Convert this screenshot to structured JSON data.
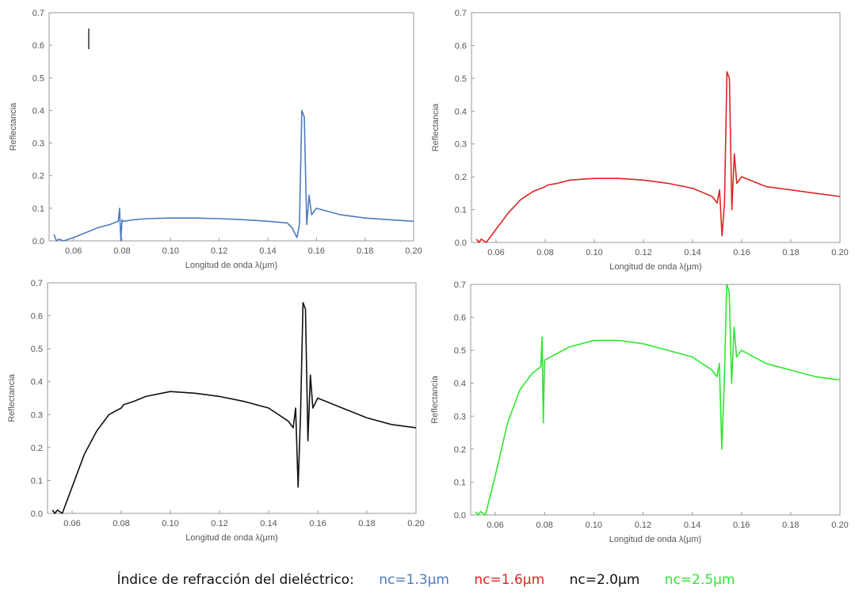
{
  "caption": {
    "prefix": "Índice de refracción del dieléctrico:",
    "items": [
      {
        "label": "nc=1.3μm",
        "color": "#4f7bbf"
      },
      {
        "label": "nc=1.6μm",
        "color": "#e02424"
      },
      {
        "label": "nc=2.0μm",
        "color": "#111111"
      },
      {
        "label": "nc=2.5μm",
        "color": "#2ee62e"
      }
    ]
  },
  "chart_data": [
    {
      "type": "line",
      "title": "",
      "xlabel": "Longitud de onda λ(μm)",
      "ylabel": "Reflectancia",
      "xlim": [
        0.05,
        0.2
      ],
      "ylim": [
        0,
        0.7
      ],
      "x_ticks": [
        "0.06",
        "0.08",
        "0.10",
        "0.12",
        "0.14",
        "0.16",
        "0.18",
        "0.20"
      ],
      "y_ticks": [
        "0.0",
        "0.1",
        "0.2",
        "0.3",
        "0.4",
        "0.5",
        "0.6",
        "0.7"
      ],
      "grid": false,
      "color": "#4f7bbf",
      "series": [
        {
          "x": [
            0.052,
            0.053,
            0.054,
            0.056,
            0.06,
            0.065,
            0.07,
            0.075,
            0.0785,
            0.079,
            0.0795,
            0.08,
            0.0805,
            0.085,
            0.09,
            0.1,
            0.11,
            0.12,
            0.13,
            0.14,
            0.148,
            0.15,
            0.152,
            0.153,
            0.154,
            0.155,
            0.156,
            0.157,
            0.158,
            0.16,
            0.17,
            0.18,
            0.19,
            0.2
          ],
          "y": [
            0.02,
            0.0,
            0.005,
            0.0,
            0.01,
            0.025,
            0.04,
            0.05,
            0.06,
            0.1,
            0.0,
            0.065,
            0.06,
            0.065,
            0.068,
            0.07,
            0.07,
            0.068,
            0.065,
            0.06,
            0.055,
            0.04,
            0.01,
            0.05,
            0.4,
            0.38,
            0.05,
            0.14,
            0.08,
            0.1,
            0.08,
            0.07,
            0.065,
            0.06
          ]
        }
      ]
    },
    {
      "type": "line",
      "title": "",
      "xlabel": "Longitud de onda λ(μm)",
      "ylabel": "Reflectancia",
      "xlim": [
        0.05,
        0.2
      ],
      "ylim": [
        0,
        0.7
      ],
      "x_ticks": [
        "0.06",
        "0.08",
        "0.10",
        "0.12",
        "0.14",
        "0.16",
        "0.18",
        "0.20"
      ],
      "y_ticks": [
        "0.0",
        "0.1",
        "0.2",
        "0.3",
        "0.4",
        "0.5",
        "0.6",
        "0.7"
      ],
      "grid": false,
      "color": "#e02424",
      "series": [
        {
          "x": [
            0.052,
            0.053,
            0.054,
            0.056,
            0.06,
            0.065,
            0.07,
            0.075,
            0.08,
            0.081,
            0.085,
            0.09,
            0.1,
            0.11,
            0.12,
            0.13,
            0.14,
            0.148,
            0.15,
            0.151,
            0.152,
            0.153,
            0.154,
            0.155,
            0.156,
            0.157,
            0.158,
            0.16,
            0.17,
            0.18,
            0.19,
            0.2
          ],
          "y": [
            0.01,
            0.0,
            0.01,
            0.0,
            0.04,
            0.09,
            0.13,
            0.155,
            0.17,
            0.175,
            0.18,
            0.19,
            0.195,
            0.195,
            0.19,
            0.18,
            0.165,
            0.14,
            0.12,
            0.16,
            0.02,
            0.12,
            0.52,
            0.5,
            0.1,
            0.27,
            0.18,
            0.2,
            0.17,
            0.16,
            0.15,
            0.14
          ]
        }
      ]
    },
    {
      "type": "line",
      "title": "",
      "xlabel": "Longitud de onda λ(μm)",
      "ylabel": "Reflectancia",
      "xlim": [
        0.05,
        0.2
      ],
      "ylim": [
        0,
        0.7
      ],
      "x_ticks": [
        "0.06",
        "0.08",
        "0.10",
        "0.12",
        "0.14",
        "0.16",
        "0.18",
        "0.20"
      ],
      "y_ticks": [
        "0.0",
        "0.1",
        "0.2",
        "0.3",
        "0.4",
        "0.5",
        "0.6",
        "0.7"
      ],
      "grid": false,
      "color": "#111111",
      "series": [
        {
          "x": [
            0.052,
            0.053,
            0.054,
            0.056,
            0.06,
            0.065,
            0.07,
            0.075,
            0.08,
            0.081,
            0.085,
            0.09,
            0.1,
            0.11,
            0.12,
            0.13,
            0.14,
            0.148,
            0.15,
            0.151,
            0.152,
            0.153,
            0.154,
            0.155,
            0.156,
            0.157,
            0.158,
            0.16,
            0.17,
            0.18,
            0.19,
            0.2
          ],
          "y": [
            0.01,
            0.0,
            0.01,
            0.0,
            0.08,
            0.18,
            0.25,
            0.3,
            0.32,
            0.33,
            0.34,
            0.355,
            0.37,
            0.365,
            0.355,
            0.34,
            0.32,
            0.28,
            0.26,
            0.32,
            0.08,
            0.3,
            0.64,
            0.62,
            0.22,
            0.42,
            0.32,
            0.35,
            0.32,
            0.29,
            0.27,
            0.26
          ]
        }
      ]
    },
    {
      "type": "line",
      "title": "",
      "xlabel": "Longitud de onda λ(μm)",
      "ylabel": "Reflectancia",
      "xlim": [
        0.05,
        0.2
      ],
      "ylim": [
        0,
        0.7
      ],
      "x_ticks": [
        "0.06",
        "0.08",
        "0.10",
        "0.12",
        "0.14",
        "0.16",
        "0.18",
        "0.20"
      ],
      "y_ticks": [
        "0.0",
        "0.1",
        "0.2",
        "0.3",
        "0.4",
        "0.5",
        "0.6",
        "0.7"
      ],
      "grid": false,
      "color": "#2ee62e",
      "series": [
        {
          "x": [
            0.052,
            0.053,
            0.054,
            0.056,
            0.06,
            0.065,
            0.07,
            0.075,
            0.0785,
            0.079,
            0.0795,
            0.08,
            0.085,
            0.09,
            0.1,
            0.11,
            0.12,
            0.13,
            0.14,
            0.148,
            0.15,
            0.151,
            0.152,
            0.153,
            0.154,
            0.155,
            0.156,
            0.157,
            0.158,
            0.16,
            0.17,
            0.18,
            0.19,
            0.2
          ],
          "y": [
            0.01,
            0.0,
            0.01,
            0.0,
            0.12,
            0.28,
            0.38,
            0.43,
            0.45,
            0.54,
            0.28,
            0.47,
            0.49,
            0.51,
            0.53,
            0.53,
            0.52,
            0.5,
            0.48,
            0.44,
            0.42,
            0.46,
            0.2,
            0.4,
            0.7,
            0.68,
            0.4,
            0.57,
            0.48,
            0.5,
            0.46,
            0.44,
            0.42,
            0.41
          ]
        }
      ]
    }
  ]
}
